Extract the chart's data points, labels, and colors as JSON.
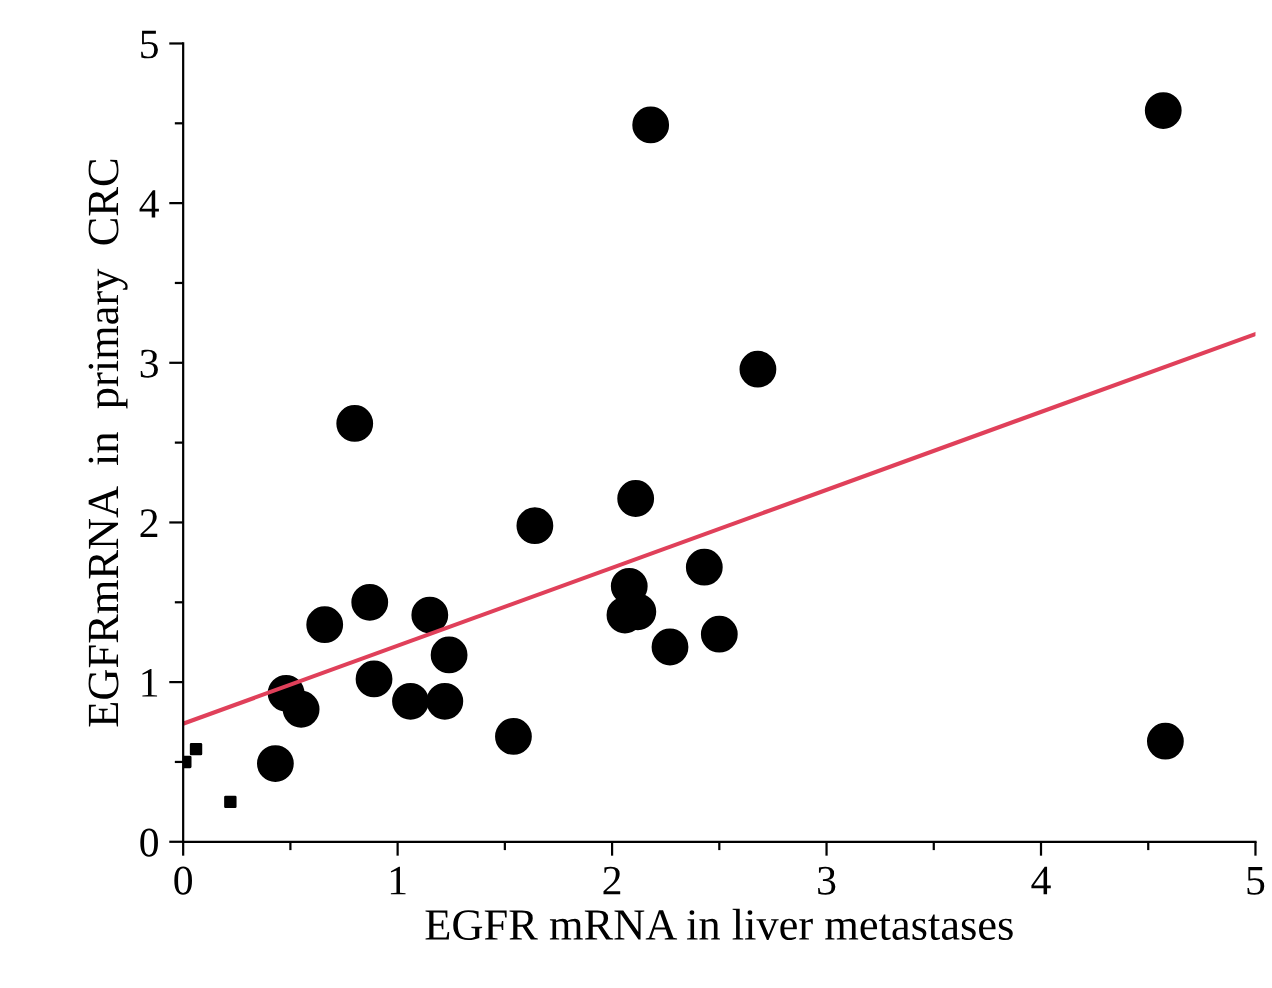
{
  "chart_data": {
    "type": "scatter",
    "xlabel": "EGFR mRNA in liver metastases",
    "ylabel": "EGFRmRNA  in  primary  CRC",
    "xlim": [
      0,
      5
    ],
    "ylim": [
      0,
      5
    ],
    "xticks": [
      0,
      {
        "value": 0.5,
        "label": null
      },
      1,
      {
        "value": 1.5,
        "label": null
      },
      2,
      {
        "value": 2.5,
        "label": null
      },
      3,
      {
        "value": 3.5,
        "label": null
      },
      4,
      {
        "value": 4.5,
        "label": null
      },
      5
    ],
    "yticks": [
      0,
      {
        "value": 0.5,
        "label": null
      },
      1,
      {
        "value": 1.5,
        "label": null
      },
      2,
      {
        "value": 2.5,
        "label": null
      },
      3,
      {
        "value": 3.5,
        "label": null
      },
      4,
      {
        "value": 4.5,
        "label": null
      },
      5
    ],
    "grid": false,
    "legend": false,
    "series": [
      {
        "marker": "circle",
        "color": "#000000",
        "x": [
          0.8,
          2.68,
          2.11,
          1.64,
          2.43,
          2.08,
          2.06,
          2.12,
          2.27,
          2.5,
          1.54,
          0.87,
          1.15,
          0.66,
          1.24,
          0.89,
          1.06,
          1.22,
          0.48,
          0.55,
          0.43,
          4.57,
          4.58,
          2.18
        ],
        "values": [
          2.62,
          2.96,
          2.15,
          1.98,
          1.72,
          1.6,
          1.42,
          1.44,
          1.22,
          1.3,
          0.66,
          1.5,
          1.42,
          1.36,
          1.17,
          1.02,
          0.88,
          0.88,
          0.93,
          0.83,
          0.49,
          4.58,
          0.63,
          4.49
        ]
      },
      {
        "marker": "square",
        "color": "#000000",
        "x": [
          0.01,
          0.06,
          0.22
        ],
        "values": [
          0.5,
          0.58,
          0.25
        ]
      },
      {
        "type": "line",
        "marker": "none",
        "color": "#e0405a",
        "x": [
          0,
          5
        ],
        "values": [
          0.74,
          3.18
        ]
      }
    ]
  }
}
